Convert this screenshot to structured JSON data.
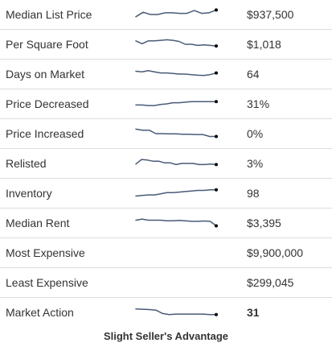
{
  "rows": [
    {
      "label": "Median List Price",
      "value": "$937,500",
      "bold": false,
      "spark": [
        3,
        7,
        5,
        5,
        6.5,
        6.5,
        6,
        6,
        8.5,
        6,
        6.5,
        9
      ]
    },
    {
      "label": "Per Square Foot",
      "value": "$1,018",
      "bold": false,
      "spark": [
        8,
        5.5,
        8,
        8,
        8.5,
        9,
        8.5,
        7.5,
        5,
        5,
        4,
        4.5,
        4,
        3.5
      ]
    },
    {
      "label": "Days on Market",
      "value": "64",
      "bold": false,
      "spark": [
        7.5,
        7,
        8,
        7,
        6,
        6,
        5.5,
        5,
        5,
        4.5,
        4,
        3.8,
        4.5,
        6
      ]
    },
    {
      "label": "Price Decreased",
      "value": "31%",
      "bold": false,
      "spark": [
        4,
        4,
        3.5,
        3.5,
        4.5,
        5,
        6,
        6,
        6.5,
        7,
        7,
        7,
        7,
        7
      ]
    },
    {
      "label": "Price Increased",
      "value": "0%",
      "bold": false,
      "spark": [
        9,
        8,
        8,
        5,
        5,
        4.8,
        4.8,
        4.5,
        4.5,
        4.2,
        4.2,
        2.5,
        2.5
      ]
    },
    {
      "label": "Relisted",
      "value": "3%",
      "bold": false,
      "spark": [
        4.5,
        8.5,
        8,
        7,
        7,
        5.5,
        5.5,
        4,
        5,
        5,
        5,
        4,
        4,
        4.5,
        4
      ]
    },
    {
      "label": "Inventory",
      "value": "98",
      "bold": false,
      "spark": [
        2.5,
        3,
        3.5,
        3.5,
        4.5,
        5.5,
        5.5,
        6,
        6.5,
        7,
        7.5,
        7.5,
        8,
        8
      ]
    },
    {
      "label": "Median Rent",
      "value": "$3,395",
      "bold": false,
      "spark": [
        7.5,
        8.5,
        7.5,
        7.5,
        7.5,
        7,
        7,
        7.3,
        7,
        6.5,
        6.5,
        6.8,
        6.5,
        2.5
      ]
    },
    {
      "label": "Most Expensive",
      "value": "$9,900,000",
      "bold": false,
      "spark": null
    },
    {
      "label": "Least Expensive",
      "value": "$299,045",
      "bold": false,
      "spark": null
    },
    {
      "label": "Market Action",
      "value": "31",
      "bold": true,
      "spark": [
        8,
        7.8,
        7.5,
        7,
        4,
        3,
        3.5,
        3.5,
        3.5,
        3.5,
        3.5,
        3,
        3
      ]
    }
  ],
  "footer": {
    "caption": "Slight Seller's Advantage"
  },
  "colors": {
    "sparkline": "#4a5a77",
    "end_dot": "#000000",
    "divider": "#dddddd",
    "text": "#333333"
  }
}
